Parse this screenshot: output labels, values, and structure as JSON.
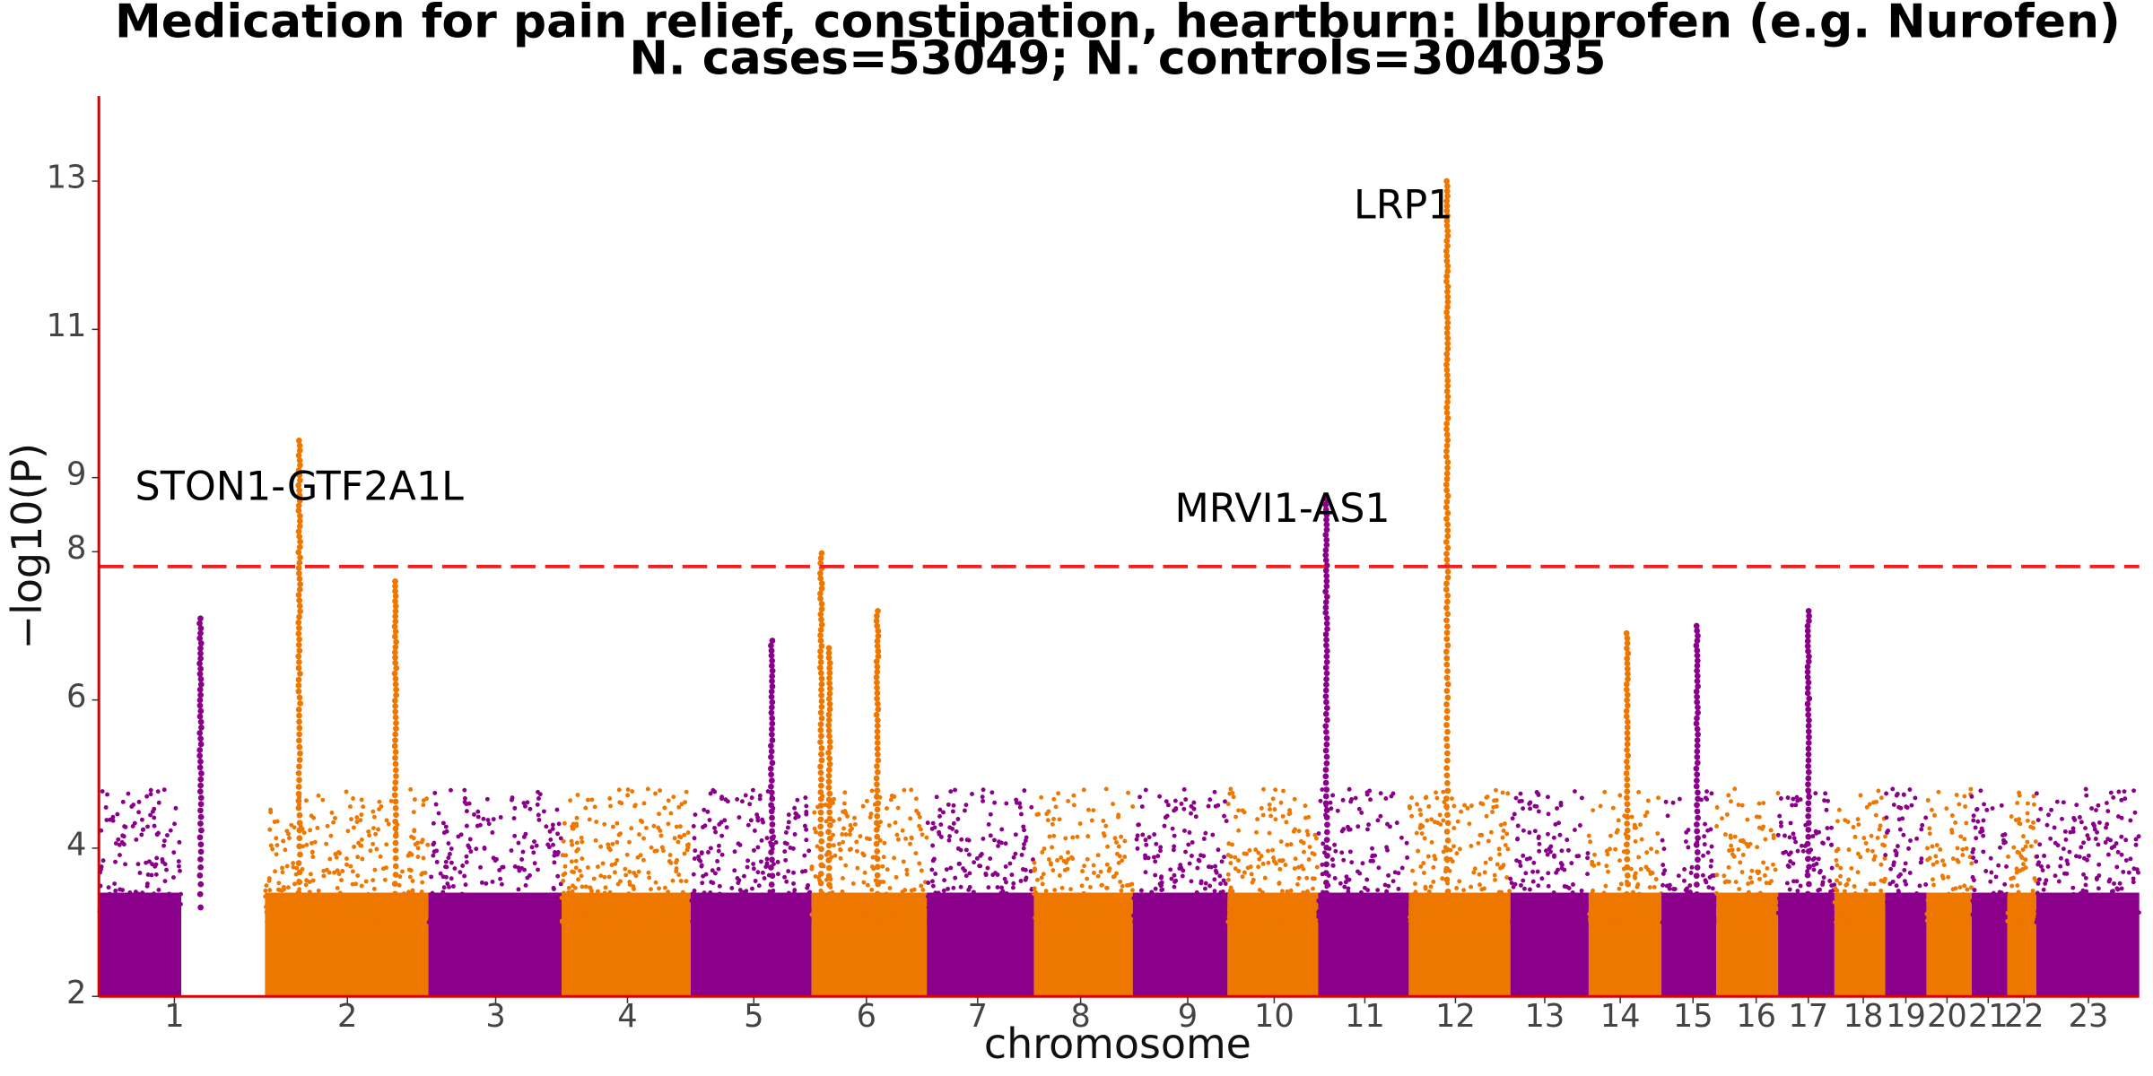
{
  "colors": {
    "odd": "#8B008B",
    "even": "#EE7700",
    "axis": "#DD0000",
    "threshold": "#EE2020"
  },
  "chart_data": {
    "type": "scatter",
    "title": "Medication for pain relief, constipation, heartburn: Ibuprofen (e.g. Nurofen)",
    "subtitle": "N. cases=53049; N. controls=304035",
    "xlabel": "chromosome",
    "ylabel": "−log10(P)",
    "ylim": [
      2,
      13.2
    ],
    "yticks": [
      2,
      4,
      6,
      8,
      9,
      11,
      13
    ],
    "threshold": 7.8,
    "chromosomes": [
      {
        "label": "1",
        "center": 127,
        "start": 72,
        "end": 132
      },
      {
        "label": "2",
        "center": 253,
        "start": 193,
        "end": 312
      },
      {
        "label": "3",
        "center": 361,
        "start": 312,
        "end": 409
      },
      {
        "label": "4",
        "center": 457,
        "start": 409,
        "end": 503
      },
      {
        "label": "5",
        "center": 549,
        "start": 503,
        "end": 591
      },
      {
        "label": "6",
        "center": 631,
        "start": 591,
        "end": 675
      },
      {
        "label": "7",
        "center": 712,
        "start": 675,
        "end": 753
      },
      {
        "label": "8",
        "center": 787,
        "start": 753,
        "end": 825
      },
      {
        "label": "9",
        "center": 865,
        "start": 825,
        "end": 894
      },
      {
        "label": "10",
        "center": 928,
        "start": 894,
        "end": 960
      },
      {
        "label": "11",
        "center": 994,
        "start": 960,
        "end": 1026
      },
      {
        "label": "12",
        "center": 1060,
        "start": 1026,
        "end": 1100
      },
      {
        "label": "13",
        "center": 1125,
        "start": 1100,
        "end": 1157
      },
      {
        "label": "14",
        "center": 1180,
        "start": 1157,
        "end": 1210
      },
      {
        "label": "15",
        "center": 1233,
        "start": 1210,
        "end": 1250
      },
      {
        "label": "16",
        "center": 1279,
        "start": 1250,
        "end": 1295
      },
      {
        "label": "17",
        "center": 1317,
        "start": 1295,
        "end": 1336
      },
      {
        "label": "18",
        "center": 1357,
        "start": 1336,
        "end": 1373
      },
      {
        "label": "19",
        "center": 1388,
        "start": 1373,
        "end": 1403
      },
      {
        "label": "20",
        "center": 1418,
        "start": 1403,
        "end": 1436
      },
      {
        "label": "21",
        "center": 1448,
        "start": 1436,
        "end": 1462
      },
      {
        "label": "22",
        "center": 1474,
        "start": 1462,
        "end": 1483
      },
      {
        "label": "23",
        "center": 1521,
        "start": 1483,
        "end": 1558
      }
    ],
    "peaks": [
      {
        "chromosome": "2",
        "pos": 218,
        "max_y": 9.5
      },
      {
        "chromosome": "2",
        "pos": 288,
        "max_y": 7.6
      },
      {
        "chromosome": "5",
        "pos": 562,
        "max_y": 6.8
      },
      {
        "chromosome": "6",
        "pos": 598,
        "max_y": 7.98
      },
      {
        "chromosome": "6",
        "pos": 639,
        "max_y": 7.2
      },
      {
        "chromosome": "6",
        "pos": 604,
        "max_y": 6.7
      },
      {
        "chromosome": "11",
        "pos": 966,
        "max_y": 8.7
      },
      {
        "chromosome": "12",
        "pos": 1054,
        "max_y": 13.0
      },
      {
        "chromosome": "17",
        "pos": 1317,
        "max_y": 7.2
      },
      {
        "chromosome": "1",
        "pos": 146,
        "max_y": 7.1
      },
      {
        "chromosome": "14",
        "pos": 1185,
        "max_y": 6.9
      },
      {
        "chromosome": "15",
        "pos": 1236,
        "max_y": 7.0
      }
    ],
    "annotations": [
      {
        "label": "STON1-GTF2A1L",
        "x": 218,
        "y": 8.7
      },
      {
        "label": "MRVI1-AS1",
        "x": 934,
        "y": 8.4
      },
      {
        "label": "LRP1",
        "x": 1022,
        "y": 12.5
      }
    ]
  }
}
